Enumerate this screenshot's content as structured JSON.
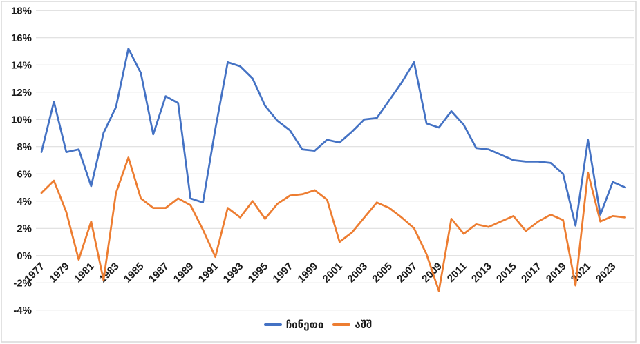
{
  "chart_data": {
    "type": "line",
    "title": "",
    "xlabel": "",
    "ylabel": "",
    "grid": true,
    "legend_position": "bottom-center",
    "ylim": [
      -4,
      18
    ],
    "y_tick_step": 2,
    "value_suffix": "%",
    "years": [
      1977,
      1978,
      1979,
      1980,
      1981,
      1982,
      1983,
      1984,
      1985,
      1986,
      1987,
      1988,
      1989,
      1990,
      1991,
      1992,
      1993,
      1994,
      1995,
      1996,
      1997,
      1998,
      1999,
      2000,
      2001,
      2002,
      2003,
      2004,
      2005,
      2006,
      2007,
      2008,
      2009,
      2010,
      2011,
      2012,
      2013,
      2014,
      2015,
      2016,
      2017,
      2018,
      2019,
      2020,
      2021,
      2022,
      2023,
      2024
    ],
    "series": [
      {
        "name": "ჩინეთი",
        "color": "#4472C4",
        "values": [
          7.6,
          11.3,
          7.6,
          7.8,
          5.1,
          9.0,
          10.9,
          15.2,
          13.4,
          8.9,
          11.7,
          11.2,
          4.2,
          3.9,
          9.3,
          14.2,
          13.9,
          13.0,
          11.0,
          9.9,
          9.2,
          7.8,
          7.7,
          8.5,
          8.3,
          9.1,
          10.0,
          10.1,
          11.4,
          12.7,
          14.2,
          9.7,
          9.4,
          10.6,
          9.6,
          7.9,
          7.8,
          7.4,
          7.0,
          6.9,
          6.9,
          6.8,
          6.0,
          2.2,
          8.5,
          3.0,
          5.4,
          5.0
        ]
      },
      {
        "name": "აშშ",
        "color": "#ED7D31",
        "values": [
          4.6,
          5.5,
          3.2,
          -0.3,
          2.5,
          -1.8,
          4.6,
          7.2,
          4.2,
          3.5,
          3.5,
          4.2,
          3.7,
          1.9,
          -0.1,
          3.5,
          2.8,
          4.0,
          2.7,
          3.8,
          4.4,
          4.5,
          4.8,
          4.1,
          1.0,
          1.7,
          2.8,
          3.9,
          3.5,
          2.8,
          2.0,
          0.1,
          -2.6,
          2.7,
          1.6,
          2.3,
          2.1,
          2.5,
          2.9,
          1.8,
          2.5,
          3.0,
          2.6,
          -2.2,
          6.1,
          2.5,
          2.9,
          2.8
        ]
      }
    ],
    "y_tick_labels": [
      "18%",
      "16%",
      "14%",
      "12%",
      "10%",
      "8%",
      "6%",
      "4%",
      "2%",
      "0%",
      "-2%",
      "-4%"
    ],
    "x_tick_labels": [
      "1977",
      "1979",
      "1981",
      "1983",
      "1985",
      "1987",
      "1989",
      "1991",
      "1993",
      "1995",
      "1997",
      "1999",
      "2001",
      "2003",
      "2005",
      "2007",
      "2009",
      "2011",
      "2013",
      "2015",
      "2017",
      "2019",
      "2021",
      "2023"
    ],
    "colors": {
      "gridline": "#D9D9D9",
      "chart_border": "#D9D9D9",
      "axis_label": "#1A1A1A",
      "background": "#FFFFFF"
    }
  },
  "legend": {
    "items": [
      {
        "label": "ჩინეთი"
      },
      {
        "label": "აშშ"
      }
    ]
  }
}
